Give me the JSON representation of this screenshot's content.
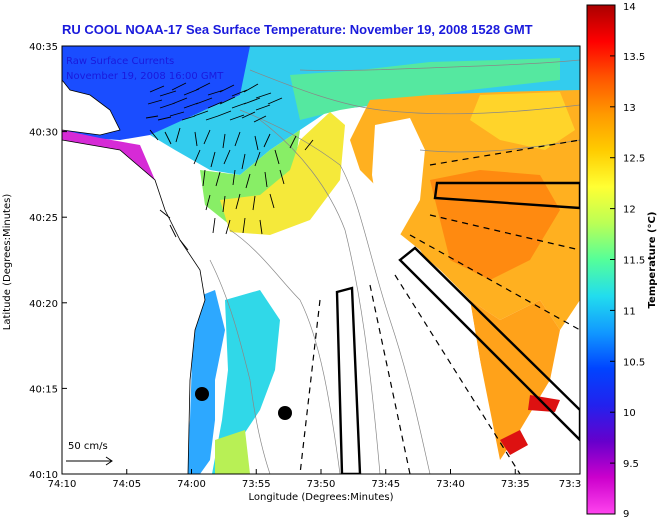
{
  "title": "RU COOL  NOAA-17  Sea Surface Temperature:  November 19, 2008 1528 GMT",
  "legend": {
    "line1": "Raw Surface Currents",
    "line2": "November 19, 2008 16:00 GMT"
  },
  "scale_label": "50 cm/s",
  "colorbar": {
    "label": "Temperature (°C)",
    "ticks": [
      "14",
      "13.5",
      "13",
      "12.5",
      "12",
      "11.5",
      "11",
      "10.5",
      "10",
      "9.5",
      "9"
    ],
    "colors": [
      "#aa0000",
      "#ff0000",
      "#ff5500",
      "#ff9900",
      "#ffcc00",
      "#ffff33",
      "#bbff55",
      "#55ff99",
      "#22ddee",
      "#1199ff",
      "#0044ff",
      "#2222ee",
      "#6600cc",
      "#cc00cc",
      "#ff44ee"
    ]
  },
  "axes": {
    "xlabel": "Longitude (Degrees:Minutes)",
    "ylabel": "Latitude (Degrees:Minutes)",
    "xticks": [
      "74:10",
      "74:05",
      "74:00",
      "73:55",
      "73:50",
      "73:45",
      "73:40",
      "73:35",
      "73:3"
    ],
    "yticks": [
      "40:35",
      "40:30",
      "40:25",
      "40:20",
      "40:15",
      "40:10"
    ]
  }
}
